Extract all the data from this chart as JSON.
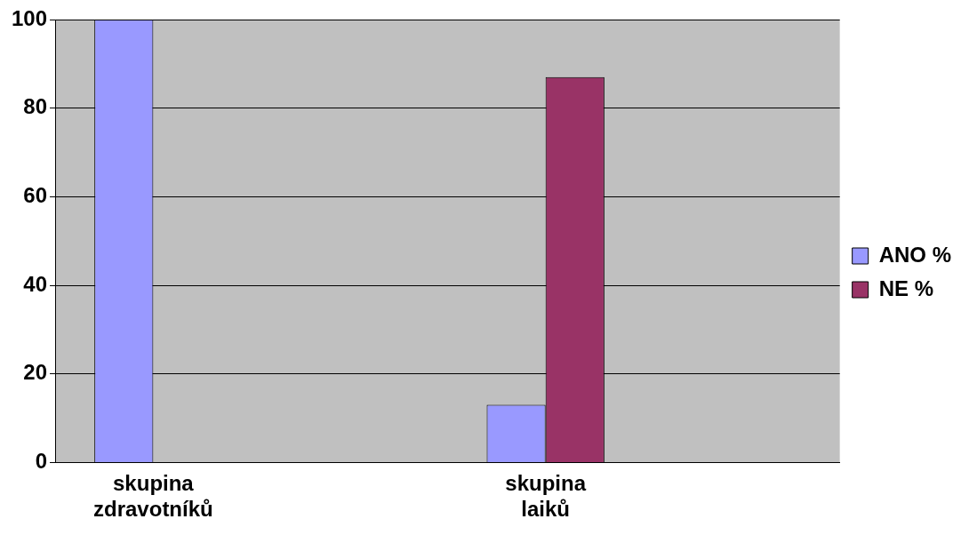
{
  "chart_data": {
    "type": "bar",
    "categories": [
      "skupina zdravotníků",
      null,
      "skupina laiků",
      null
    ],
    "series": [
      {
        "name": "ANO %",
        "color": "#9999ff",
        "values": [
          100,
          null,
          13,
          null
        ]
      },
      {
        "name": "NE %",
        "color": "#993366",
        "values": [
          0,
          null,
          87,
          null
        ]
      }
    ],
    "ylim": [
      0,
      100
    ],
    "yticks": [
      0,
      20,
      40,
      60,
      80,
      100
    ],
    "grid": "y",
    "legend": "right"
  }
}
